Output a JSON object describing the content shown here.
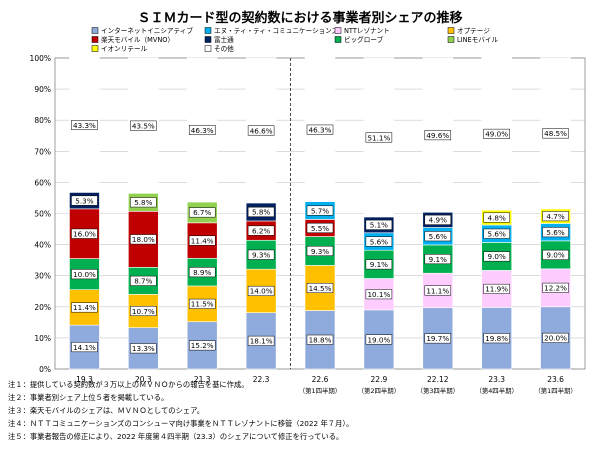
{
  "chart_data": {
    "type": "bar",
    "stacked": true,
    "title": "ＳＩＭカード型の契約数における事業者別シェアの推移",
    "categories": [
      "19.3",
      "20.3",
      "21.3",
      "22.3",
      "22.6",
      "22.9",
      "22.12",
      "23.3",
      "23.6"
    ],
    "category_notes": [
      "",
      "",
      "",
      "",
      "（第1四半期）",
      "（第2四半期）",
      "（第3四半期）",
      "（第4四半期）",
      "（第1四半期）"
    ],
    "divider_after_index": 3,
    "ylim": [
      0,
      100
    ],
    "yticks": [
      "0%",
      "10%",
      "20%",
      "30%",
      "40%",
      "50%",
      "60%",
      "70%",
      "80%",
      "90%",
      "100%"
    ],
    "grid": true,
    "legend_position": "top",
    "series": [
      {
        "name": "インターネットイニシアティブ",
        "color": "#8faadc",
        "values": [
          14.1,
          13.3,
          15.2,
          18.1,
          18.8,
          19.0,
          19.7,
          19.8,
          20.0
        ],
        "labels": [
          "14.1%",
          "13.3%",
          "15.2%",
          "18.1%",
          "18.8%",
          "19.0%",
          "19.7%",
          "19.8%",
          "20.0%"
        ]
      },
      {
        "name": "オプテージ",
        "color": "#ffc000",
        "values": [
          11.4,
          10.7,
          11.5,
          14.0,
          14.5,
          0,
          0,
          0,
          0
        ],
        "labels": [
          "11.4%",
          "10.7%",
          "11.5%",
          "14.0%",
          "14.5%",
          "",
          "",
          "",
          ""
        ]
      },
      {
        "name": "NTTレゾナント",
        "color": "#ffccff",
        "values": [
          0,
          0,
          0,
          0,
          0,
          10.1,
          11.1,
          11.9,
          12.2
        ],
        "labels": [
          "",
          "",
          "",
          "",
          "",
          "10.1%",
          "11.1%",
          "11.9%",
          "12.2%"
        ]
      },
      {
        "name": "ビッグローブ",
        "color": "#00b050",
        "values": [
          10.0,
          8.7,
          8.9,
          9.3,
          9.3,
          9.1,
          9.1,
          9.0,
          9.0
        ],
        "labels": [
          "10.0%",
          "8.7%",
          "8.9%",
          "9.3%",
          "9.3%",
          "9.1%",
          "9.1%",
          "9.0%",
          "9.0%"
        ]
      },
      {
        "name": "楽天モバイル（MVNO）",
        "color": "#c00000",
        "values": [
          16.0,
          18.0,
          11.4,
          6.2,
          5.5,
          0,
          0,
          0,
          0
        ],
        "labels": [
          "16.0%",
          "18.0%",
          "11.4%",
          "6.2%",
          "5.5%",
          "",
          "",
          "",
          ""
        ]
      },
      {
        "name": "エヌ・ティ・ティ・コミュニケーションズ",
        "color": "#00b0f0",
        "values": [
          0,
          0,
          0,
          0,
          5.7,
          5.6,
          5.6,
          5.6,
          5.6
        ],
        "labels": [
          "",
          "",
          "",
          "",
          "5.7%",
          "5.6%",
          "5.6%",
          "5.6%",
          "5.6%"
        ]
      },
      {
        "name": "富士通",
        "color": "#002060",
        "values": [
          5.3,
          0,
          0,
          5.8,
          0,
          5.1,
          4.9,
          0,
          0
        ],
        "labels": [
          "5.3%",
          "",
          "",
          "5.8%",
          "",
          "5.1%",
          "4.9%",
          "",
          ""
        ]
      },
      {
        "name": "LINEモバイル",
        "color": "#92d050",
        "values": [
          0,
          5.8,
          6.7,
          0,
          0,
          0,
          0,
          0,
          0
        ],
        "labels": [
          "",
          "5.8%",
          "6.7%",
          "",
          "",
          "",
          "",
          "",
          ""
        ]
      },
      {
        "name": "イオンリテール",
        "color": "#ffff00",
        "values": [
          0,
          0,
          0,
          0,
          0,
          0,
          0,
          4.8,
          4.7
        ],
        "labels": [
          "",
          "",
          "",
          "",
          "",
          "",
          "",
          "4.8%",
          "4.7%"
        ]
      },
      {
        "name": "その他",
        "color": "#ffffff",
        "values": [
          43.3,
          43.5,
          46.3,
          46.6,
          46.3,
          51.1,
          49.6,
          49.0,
          48.5
        ],
        "labels": [
          "43.3%",
          "43.5%",
          "46.3%",
          "46.6%",
          "46.3%",
          "51.1%",
          "49.6%",
          "49.0%",
          "48.5%"
        ]
      }
    ],
    "legend_order": [
      "インターネットイニシアティブ",
      "エヌ・ティ・ティ・コミュニケーションズ",
      "NTTレゾナント",
      "オプテージ",
      "楽天モバイル（MVNO）",
      "富士通",
      "ビッグローブ",
      "LINEモバイル",
      "イオンリテール",
      "その他"
    ]
  },
  "notes": [
    "注１：提供している契約数が３万以上のＭＶＮＯからの報告を基に作成。",
    "注２：事業者別シェア上位５者を掲載している。",
    "注３：楽天モバイルのシェアは、ＭＶＮＯとしてのシェア。",
    "注４：ＮＴＴコミュニケーションズのコンシューマ向け事業をＮＴＴレゾナントに移管（2022 年７月）。",
    "注５：事業者報告の修正により、2022 年度第４四半期（23.3）のシェアについて修正を行っている。"
  ]
}
